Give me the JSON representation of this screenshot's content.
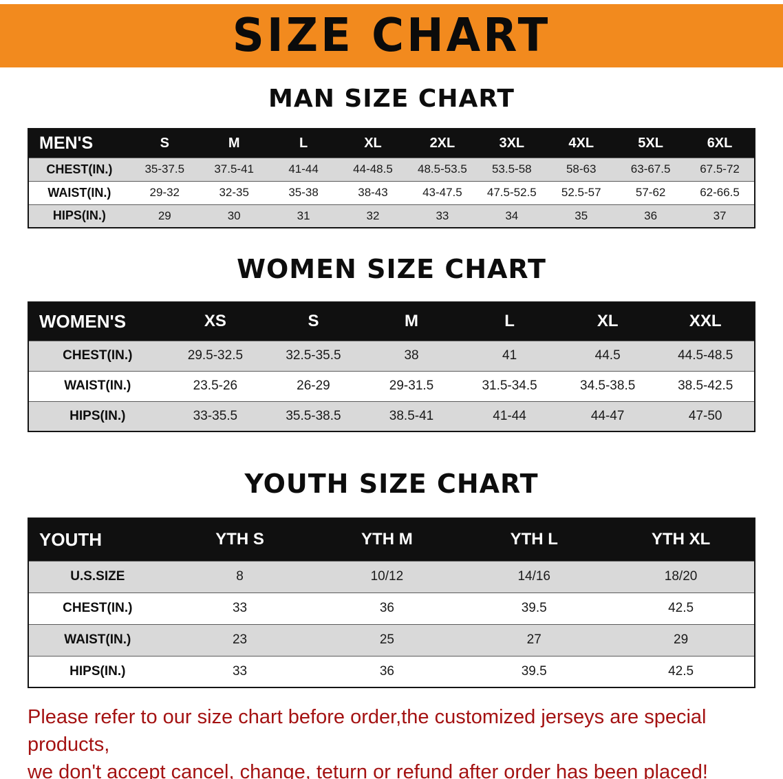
{
  "banner": {
    "title": "SIZE CHART"
  },
  "men": {
    "heading": "MAN SIZE CHART",
    "table": {
      "header": [
        "MEN'S",
        "S",
        "M",
        "L",
        "XL",
        "2XL",
        "3XL",
        "4XL",
        "5XL",
        "6XL"
      ],
      "rows": [
        [
          "CHEST(IN.)",
          "35-37.5",
          "37.5-41",
          "41-44",
          "44-48.5",
          "48.5-53.5",
          "53.5-58",
          "58-63",
          "63-67.5",
          "67.5-72"
        ],
        [
          "WAIST(IN.)",
          "29-32",
          "32-35",
          "35-38",
          "38-43",
          "43-47.5",
          "47.5-52.5",
          "52.5-57",
          "57-62",
          "62-66.5"
        ],
        [
          "HIPS(IN.)",
          "29",
          "30",
          "31",
          "32",
          "33",
          "34",
          "35",
          "36",
          "37"
        ]
      ]
    }
  },
  "women": {
    "heading": "WOMEN SIZE CHART",
    "table": {
      "header": [
        "WOMEN'S",
        "XS",
        "S",
        "M",
        "L",
        "XL",
        "XXL"
      ],
      "rows": [
        [
          "CHEST(IN.)",
          "29.5-32.5",
          "32.5-35.5",
          "38",
          "41",
          "44.5",
          "44.5-48.5"
        ],
        [
          "WAIST(IN.)",
          "23.5-26",
          "26-29",
          "29-31.5",
          "31.5-34.5",
          "34.5-38.5",
          "38.5-42.5"
        ],
        [
          "HIPS(IN.)",
          "33-35.5",
          "35.5-38.5",
          "38.5-41",
          "41-44",
          "44-47",
          "47-50"
        ]
      ]
    }
  },
  "youth": {
    "heading": "YOUTH SIZE CHART",
    "table": {
      "header": [
        "YOUTH",
        "YTH S",
        "YTH M",
        "YTH L",
        "YTH XL"
      ],
      "rows": [
        [
          "U.S.SIZE",
          "8",
          "10/12",
          "14/16",
          "18/20"
        ],
        [
          "CHEST(IN.)",
          "33",
          "36",
          "39.5",
          "42.5"
        ],
        [
          "WAIST(IN.)",
          "23",
          "25",
          "27",
          "29"
        ],
        [
          "HIPS(IN.)",
          "33",
          "36",
          "39.5",
          "42.5"
        ]
      ]
    }
  },
  "disclaimer": {
    "line1": "Please refer to our size chart before order,the customized jerseys are special products,",
    "line2": "we don't accept cancel, change, teturn or refund after order has been placed!"
  },
  "colors": {
    "banner_bg": "#F28A1E",
    "header_bg": "#101010",
    "row_alt": "#D9D9D9",
    "disclaimer_red": "#A41212"
  }
}
